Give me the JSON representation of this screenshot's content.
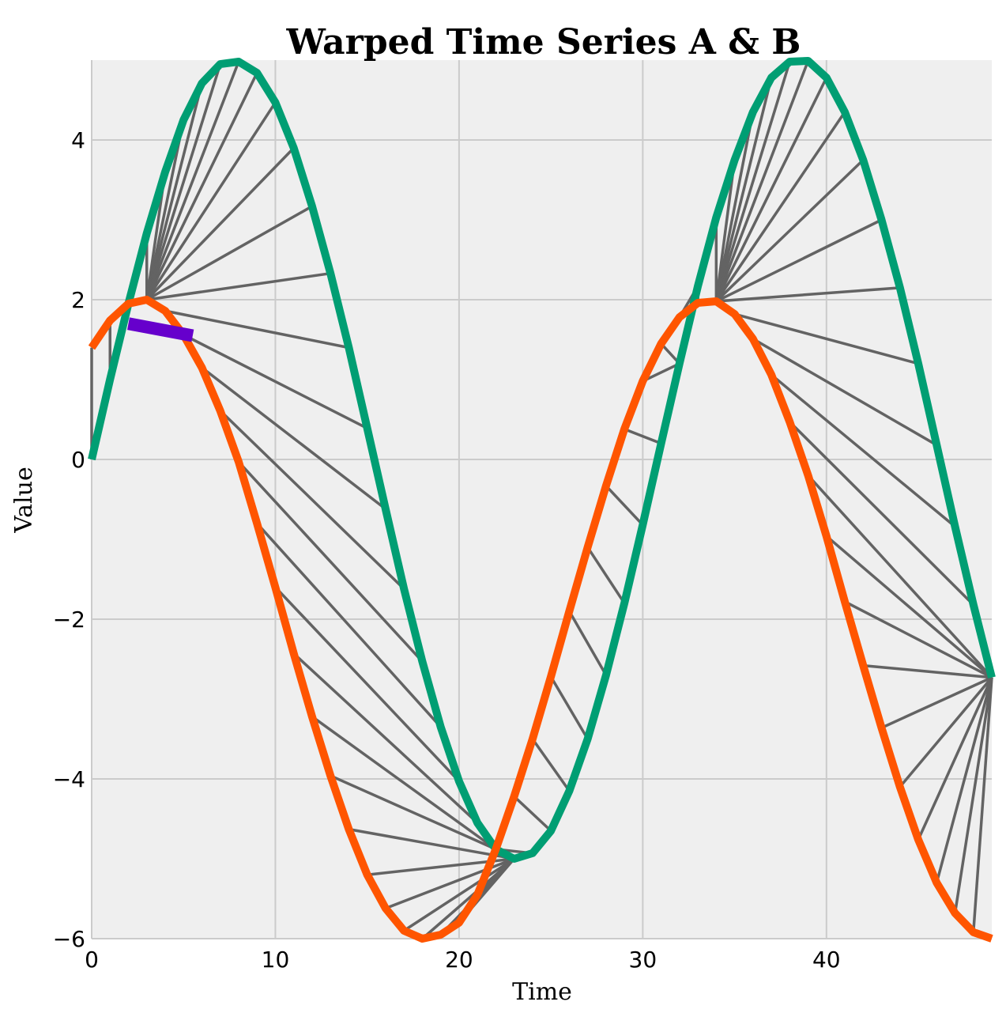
{
  "chart_data": {
    "type": "line",
    "title": "Warped Time Series A & B",
    "xlabel": "Time",
    "ylabel": "Value",
    "xlim": [
      0,
      49
    ],
    "ylim": [
      -6,
      5
    ],
    "xticks": [
      0,
      10,
      20,
      30,
      40
    ],
    "yticks": [
      4,
      2,
      0,
      -2,
      -4,
      -6
    ],
    "x_tick_labels": [
      "0",
      "10",
      "20",
      "30",
      "40"
    ],
    "y_tick_labels": [
      "4",
      "2",
      "0",
      "−2",
      "−4",
      "−6"
    ],
    "grid": true,
    "series": [
      {
        "color": "#009e73",
        "x": [
          0,
          1,
          2,
          3,
          4,
          5,
          6,
          7,
          8,
          9,
          10,
          11,
          12,
          13,
          14,
          15,
          16,
          17,
          18,
          19,
          20,
          21,
          22,
          23,
          24,
          25,
          26,
          27,
          28,
          29,
          30,
          31,
          32,
          33,
          34,
          35,
          36,
          37,
          38,
          39,
          40,
          41,
          42,
          43,
          44,
          45,
          46,
          47,
          48,
          49
        ],
        "values": [
          0.0,
          1.0,
          1.95,
          2.83,
          3.6,
          4.25,
          4.71,
          4.95,
          4.98,
          4.84,
          4.47,
          3.9,
          3.17,
          2.33,
          1.4,
          0.39,
          -0.62,
          -1.62,
          -2.53,
          -3.35,
          -4.03,
          -4.55,
          -4.88,
          -5.0,
          -4.93,
          -4.65,
          -4.15,
          -3.5,
          -2.7,
          -1.8,
          -0.82,
          0.2,
          1.2,
          2.17,
          3.03,
          3.75,
          4.35,
          4.78,
          4.98,
          4.99,
          4.78,
          4.35,
          3.75,
          3.0,
          2.15,
          1.2,
          0.18,
          -0.84,
          -1.82,
          -2.73
        ]
      },
      {
        "color": "#ff5500",
        "x": [
          0,
          1,
          2,
          3,
          4,
          5,
          6,
          7,
          8,
          9,
          10,
          11,
          12,
          13,
          14,
          15,
          16,
          17,
          18,
          19,
          20,
          21,
          22,
          23,
          24,
          25,
          26,
          27,
          28,
          29,
          30,
          31,
          32,
          33,
          34,
          35,
          36,
          37,
          38,
          39,
          40,
          41,
          42,
          43,
          44,
          45,
          46,
          47,
          48,
          49
        ],
        "values": [
          1.4,
          1.74,
          1.95,
          2.0,
          1.86,
          1.56,
          1.15,
          0.61,
          -0.03,
          -0.8,
          -1.6,
          -2.43,
          -3.22,
          -3.96,
          -4.63,
          -5.2,
          -5.62,
          -5.9,
          -6.0,
          -5.95,
          -5.8,
          -5.45,
          -4.88,
          -4.22,
          -3.5,
          -2.72,
          -1.9,
          -1.1,
          -0.33,
          0.38,
          0.98,
          1.45,
          1.78,
          1.96,
          1.98,
          1.82,
          1.51,
          1.06,
          0.47,
          -0.2,
          -0.96,
          -1.78,
          -2.58,
          -3.36,
          -4.1,
          -4.76,
          -5.3,
          -5.68,
          -5.92,
          -6.0
        ]
      }
    ],
    "warping_lines": {
      "color": "#636363",
      "pairs": [
        [
          0,
          0
        ],
        [
          1,
          1
        ],
        [
          2,
          2
        ],
        [
          3,
          3
        ],
        [
          3,
          4
        ],
        [
          3,
          5
        ],
        [
          3,
          6
        ],
        [
          3,
          7
        ],
        [
          3,
          8
        ],
        [
          3,
          9
        ],
        [
          3,
          10
        ],
        [
          3,
          11
        ],
        [
          3,
          12
        ],
        [
          3,
          13
        ],
        [
          4,
          14
        ],
        [
          5,
          15
        ],
        [
          6,
          16
        ],
        [
          7,
          17
        ],
        [
          8,
          18
        ],
        [
          9,
          19
        ],
        [
          10,
          20
        ],
        [
          11,
          21
        ],
        [
          12,
          22
        ],
        [
          13,
          22
        ],
        [
          14,
          23
        ],
        [
          15,
          23
        ],
        [
          16,
          23
        ],
        [
          17,
          23
        ],
        [
          18,
          23
        ],
        [
          19,
          23
        ],
        [
          20,
          23
        ],
        [
          21,
          23
        ],
        [
          22,
          24
        ],
        [
          23,
          25
        ],
        [
          24,
          26
        ],
        [
          25,
          27
        ],
        [
          26,
          28
        ],
        [
          27,
          29
        ],
        [
          28,
          30
        ],
        [
          29,
          31
        ],
        [
          30,
          32
        ],
        [
          31,
          32
        ],
        [
          32,
          33
        ],
        [
          33,
          33
        ],
        [
          34,
          34
        ],
        [
          34,
          35
        ],
        [
          34,
          36
        ],
        [
          34,
          37
        ],
        [
          34,
          38
        ],
        [
          34,
          39
        ],
        [
          34,
          40
        ],
        [
          34,
          41
        ],
        [
          34,
          42
        ],
        [
          34,
          43
        ],
        [
          34,
          44
        ],
        [
          35,
          45
        ],
        [
          36,
          46
        ],
        [
          37,
          47
        ],
        [
          38,
          48
        ],
        [
          39,
          49
        ],
        [
          40,
          49
        ],
        [
          41,
          49
        ],
        [
          42,
          49
        ],
        [
          43,
          49
        ],
        [
          44,
          49
        ],
        [
          45,
          49
        ],
        [
          46,
          49
        ],
        [
          47,
          49
        ],
        [
          48,
          49
        ]
      ]
    },
    "highlight_segment": {
      "color": "#6600cc",
      "x": [
        2,
        5.5
      ],
      "values": [
        1.7,
        1.55
      ]
    }
  }
}
